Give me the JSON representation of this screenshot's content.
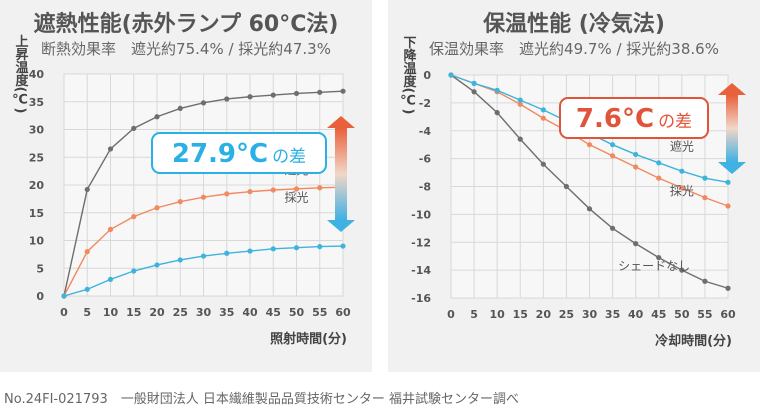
{
  "footer": "No.24FI-021793　一般財団法人 日本繊維製品品質技術センター 福井試験センター調べ",
  "chart_data": [
    {
      "type": "line",
      "title": "遮熱性能(赤外ランプ 60°C法)",
      "subtitle": "断熱効果率　遮光約75.4%  /  採光約47.3%",
      "xlabel": "照射時間(分)",
      "ylabel": "上昇温度(℃)",
      "xlim": [
        0,
        60
      ],
      "ylim": [
        0,
        40
      ],
      "x": [
        0,
        5,
        10,
        15,
        20,
        25,
        30,
        35,
        40,
        45,
        50,
        55,
        60
      ],
      "xticks": [
        "0",
        "5",
        "10",
        "15",
        "20",
        "25",
        "30",
        "35",
        "40",
        "45",
        "50",
        "55",
        "60"
      ],
      "yticks": [
        "0",
        "5",
        "10",
        "15",
        "20",
        "25",
        "30",
        "35",
        "40"
      ],
      "grid": true,
      "series": [
        {
          "name": "シェードなし",
          "color": "#6e6e6e",
          "values": [
            0,
            19.2,
            26.5,
            30.2,
            32.3,
            33.8,
            34.8,
            35.5,
            35.9,
            36.2,
            36.5,
            36.7,
            36.9
          ]
        },
        {
          "name": "採光",
          "color": "#f08a60",
          "values": [
            0,
            8.0,
            12.0,
            14.3,
            15.9,
            17.0,
            17.8,
            18.4,
            18.8,
            19.1,
            19.3,
            19.5,
            19.6
          ]
        },
        {
          "name": "遮光",
          "color": "#3cb4dc",
          "values": [
            0,
            1.2,
            3.0,
            4.5,
            5.6,
            6.5,
            7.2,
            7.7,
            8.1,
            8.5,
            8.7,
            8.9,
            9.0
          ]
        }
      ],
      "annotation": {
        "value": "27.9°C",
        "suffix": "の差",
        "color": "#2ab0e4"
      }
    },
    {
      "type": "line",
      "title": "保温性能 (冷気法)",
      "subtitle": "保温効果率　遮光約49.7%  /  採光約38.6%",
      "xlabel": "冷却時間(分)",
      "ylabel": "下降温度(℃)",
      "xlim": [
        0,
        60
      ],
      "ylim": [
        -16,
        0
      ],
      "x": [
        0,
        5,
        10,
        15,
        20,
        25,
        30,
        35,
        40,
        45,
        50,
        55,
        60
      ],
      "xticks": [
        "0",
        "5",
        "10",
        "15",
        "20",
        "25",
        "30",
        "35",
        "40",
        "45",
        "50",
        "55",
        "60"
      ],
      "yticks": [
        "0",
        "-2",
        "-4",
        "-6",
        "-8",
        "-10",
        "-12",
        "-14",
        "-16"
      ],
      "grid": true,
      "series": [
        {
          "name": "シェードなし",
          "color": "#6e6e6e",
          "values": [
            0,
            -1.2,
            -2.7,
            -4.6,
            -6.4,
            -8.0,
            -9.6,
            -11.0,
            -12.1,
            -13.1,
            -14.0,
            -14.8,
            -15.3
          ]
        },
        {
          "name": "採光",
          "color": "#f08a60",
          "values": [
            0,
            -0.6,
            -1.2,
            -2.1,
            -3.1,
            -4.0,
            -5.0,
            -5.8,
            -6.6,
            -7.4,
            -8.1,
            -8.8,
            -9.4
          ]
        },
        {
          "name": "遮光",
          "color": "#3cb4dc",
          "values": [
            0,
            -0.6,
            -1.1,
            -1.8,
            -2.5,
            -3.3,
            -4.2,
            -5.0,
            -5.7,
            -6.3,
            -6.9,
            -7.4,
            -7.7
          ]
        }
      ],
      "annotation": {
        "value": "7.6°C",
        "suffix": "の差",
        "color": "#e0553a"
      }
    }
  ]
}
